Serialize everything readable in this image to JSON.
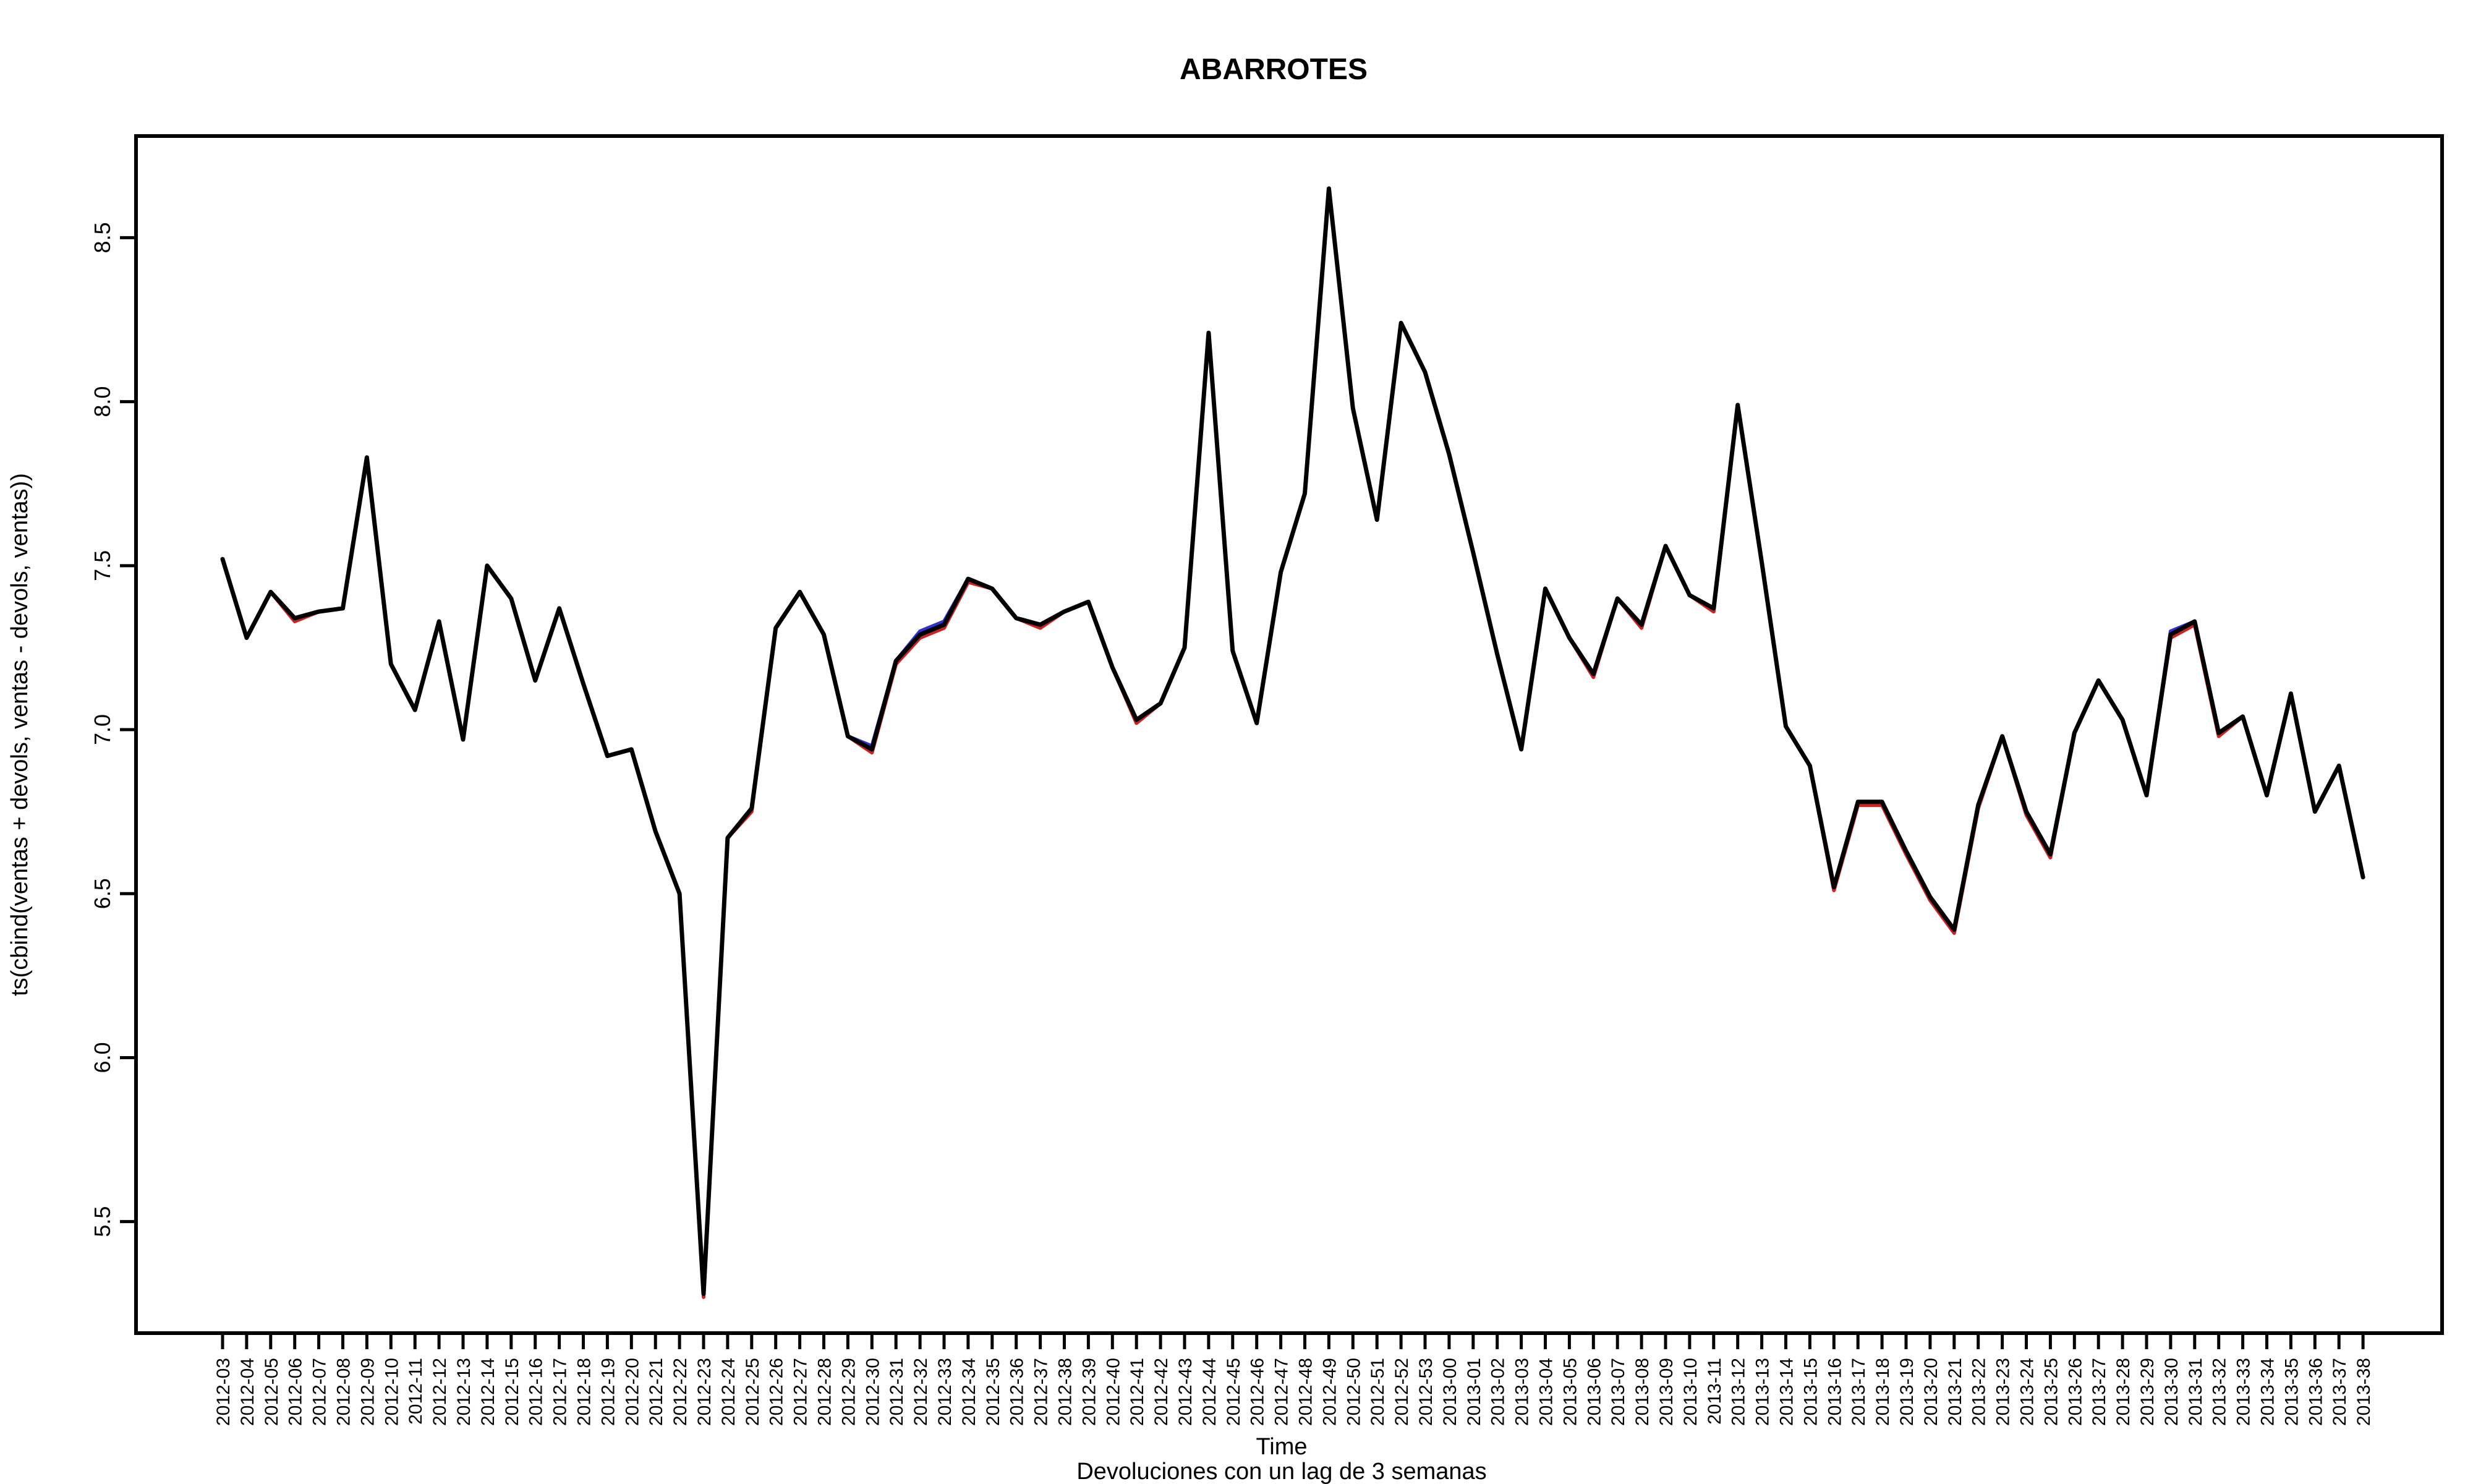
{
  "chart_data": {
    "type": "line",
    "title": "ABARROTES",
    "xlabel": "Time",
    "ylabel": "ts(cbind(ventas + devols, ventas - devols, ventas))",
    "subtitle": "Devoluciones con un lag de 3 semanas",
    "ylim": [
      5.16,
      8.81
    ],
    "yticks": [
      5.5,
      6.0,
      6.5,
      7.0,
      7.5,
      8.0,
      8.5
    ],
    "ytick_labels": [
      "5.5",
      "6.0",
      "6.5",
      "7.0",
      "7.5",
      "8.0",
      "8.5"
    ],
    "grid": false,
    "categories": [
      "2012-03",
      "2012-04",
      "2012-05",
      "2012-06",
      "2012-07",
      "2012-08",
      "2012-09",
      "2012-10",
      "2012-11",
      "2012-12",
      "2012-13",
      "2012-14",
      "2012-15",
      "2012-16",
      "2012-17",
      "2012-18",
      "2012-19",
      "2012-20",
      "2012-21",
      "2012-22",
      "2012-23",
      "2012-24",
      "2012-25",
      "2012-26",
      "2012-27",
      "2012-28",
      "2012-29",
      "2012-30",
      "2012-31",
      "2012-32",
      "2012-33",
      "2012-34",
      "2012-35",
      "2012-36",
      "2012-37",
      "2012-38",
      "2012-39",
      "2012-40",
      "2012-41",
      "2012-42",
      "2012-43",
      "2012-44",
      "2012-45",
      "2012-46",
      "2012-47",
      "2012-48",
      "2012-49",
      "2012-50",
      "2012-51",
      "2012-52",
      "2012-53",
      "2013-00",
      "2013-01",
      "2013-02",
      "2013-03",
      "2013-04",
      "2013-05",
      "2013-06",
      "2013-07",
      "2013-08",
      "2013-09",
      "2013-10",
      "2013-11",
      "2013-12",
      "2013-13",
      "2013-14",
      "2013-15",
      "2013-16",
      "2013-17",
      "2013-18",
      "2013-19",
      "2013-20",
      "2013-21",
      "2013-22",
      "2013-23",
      "2013-24",
      "2013-25",
      "2013-26",
      "2013-27",
      "2013-28",
      "2013-29",
      "2013-30",
      "2013-31",
      "2013-32",
      "2013-33",
      "2013-34",
      "2013-35",
      "2013-36",
      "2013-37",
      "2013-38"
    ],
    "series": [
      {
        "color": "#3333cc",
        "values": [
          7.52,
          7.28,
          7.42,
          7.34,
          7.36,
          7.37,
          7.83,
          7.2,
          7.06,
          7.33,
          6.97,
          7.5,
          7.4,
          7.15,
          7.37,
          7.14,
          6.92,
          6.94,
          6.69,
          6.5,
          5.28,
          6.67,
          6.76,
          7.31,
          7.42,
          7.29,
          6.98,
          6.95,
          7.21,
          7.3,
          7.33,
          7.46,
          7.43,
          7.34,
          7.32,
          7.36,
          7.39,
          7.19,
          7.03,
          7.08,
          7.25,
          8.21,
          7.24,
          7.02,
          7.48,
          7.72,
          8.65,
          7.98,
          7.64,
          8.24,
          8.09,
          7.84,
          7.54,
          7.23,
          6.94,
          7.43,
          7.28,
          7.17,
          7.4,
          7.32,
          7.56,
          7.41,
          7.37,
          7.99,
          7.51,
          7.01,
          6.89,
          6.52,
          6.78,
          6.78,
          6.63,
          6.49,
          6.39,
          6.77,
          6.98,
          6.75,
          6.62,
          6.99,
          7.15,
          7.03,
          6.8,
          7.3,
          7.33,
          6.99,
          7.04,
          6.8,
          7.11,
          6.75,
          6.89,
          6.55
        ]
      },
      {
        "color": "#cc2222",
        "values": [
          7.52,
          7.28,
          7.42,
          7.33,
          7.36,
          7.37,
          7.83,
          7.2,
          7.06,
          7.33,
          6.97,
          7.5,
          7.4,
          7.15,
          7.37,
          7.14,
          6.92,
          6.94,
          6.69,
          6.5,
          5.27,
          6.67,
          6.75,
          7.31,
          7.42,
          7.29,
          6.98,
          6.93,
          7.2,
          7.28,
          7.31,
          7.45,
          7.43,
          7.34,
          7.31,
          7.36,
          7.39,
          7.19,
          7.02,
          7.08,
          7.25,
          8.21,
          7.24,
          7.02,
          7.48,
          7.72,
          8.65,
          7.98,
          7.64,
          8.24,
          8.09,
          7.84,
          7.54,
          7.23,
          6.94,
          7.43,
          7.28,
          7.16,
          7.4,
          7.31,
          7.56,
          7.41,
          7.36,
          7.99,
          7.51,
          7.01,
          6.89,
          6.51,
          6.77,
          6.77,
          6.62,
          6.48,
          6.38,
          6.76,
          6.98,
          6.74,
          6.61,
          6.99,
          7.15,
          7.03,
          6.8,
          7.28,
          7.32,
          6.98,
          7.04,
          6.8,
          7.11,
          6.75,
          6.89,
          6.55
        ]
      },
      {
        "color": "#000000",
        "values": [
          7.52,
          7.28,
          7.42,
          7.34,
          7.36,
          7.37,
          7.83,
          7.2,
          7.06,
          7.33,
          6.97,
          7.5,
          7.4,
          7.15,
          7.37,
          7.14,
          6.92,
          6.94,
          6.69,
          6.5,
          5.28,
          6.67,
          6.76,
          7.31,
          7.42,
          7.29,
          6.98,
          6.94,
          7.21,
          7.29,
          7.32,
          7.46,
          7.43,
          7.34,
          7.32,
          7.36,
          7.39,
          7.19,
          7.03,
          7.08,
          7.25,
          8.21,
          7.24,
          7.02,
          7.48,
          7.72,
          8.65,
          7.98,
          7.64,
          8.24,
          8.09,
          7.84,
          7.54,
          7.23,
          6.94,
          7.43,
          7.28,
          7.17,
          7.4,
          7.32,
          7.56,
          7.41,
          7.37,
          7.99,
          7.51,
          7.01,
          6.89,
          6.52,
          6.78,
          6.78,
          6.63,
          6.49,
          6.39,
          6.77,
          6.98,
          6.75,
          6.62,
          6.99,
          7.15,
          7.03,
          6.8,
          7.29,
          7.33,
          6.99,
          7.04,
          6.8,
          7.11,
          6.75,
          6.89,
          6.55
        ]
      }
    ]
  }
}
